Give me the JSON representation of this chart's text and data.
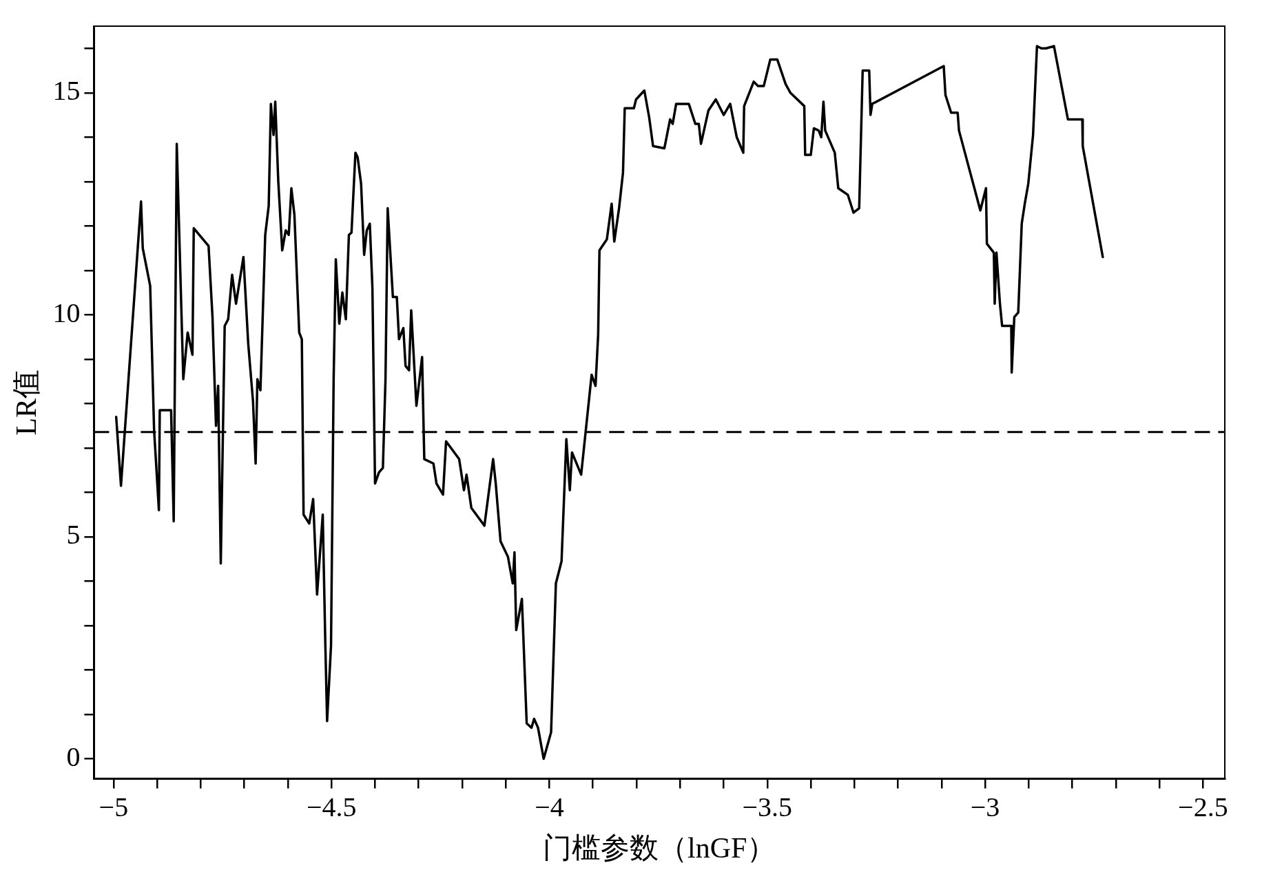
{
  "chart_data": {
    "type": "line",
    "xlabel": "门槛参数（lnGF）",
    "ylabel": "LR值",
    "xlim": [
      -5.045,
      -2.45
    ],
    "ylim": [
      -0.45,
      16.5
    ],
    "xticks": [
      {
        "value": -5,
        "label": "−5"
      },
      {
        "value": -4.9,
        "label": null
      },
      {
        "value": -4.8,
        "label": null
      },
      {
        "value": -4.7,
        "label": null
      },
      {
        "value": -4.6,
        "label": null
      },
      {
        "value": -4.5,
        "label": "−4.5"
      },
      {
        "value": -4.4,
        "label": null
      },
      {
        "value": -4.3,
        "label": null
      },
      {
        "value": -4.2,
        "label": null
      },
      {
        "value": -4.1,
        "label": null
      },
      {
        "value": -4,
        "label": "−4"
      },
      {
        "value": -3.9,
        "label": null
      },
      {
        "value": -3.8,
        "label": null
      },
      {
        "value": -3.7,
        "label": null
      },
      {
        "value": -3.6,
        "label": null
      },
      {
        "value": -3.5,
        "label": "−3.5"
      },
      {
        "value": -3.4,
        "label": null
      },
      {
        "value": -3.3,
        "label": null
      },
      {
        "value": -3.2,
        "label": null
      },
      {
        "value": -3.1,
        "label": null
      },
      {
        "value": -3,
        "label": "−3"
      },
      {
        "value": -2.9,
        "label": null
      },
      {
        "value": -2.8,
        "label": null
      },
      {
        "value": -2.7,
        "label": null
      },
      {
        "value": -2.6,
        "label": null
      },
      {
        "value": -2.5,
        "label": "−2.5"
      }
    ],
    "yticks": [
      0,
      {
        "value": 1,
        "label": null
      },
      {
        "value": 2,
        "label": null
      },
      {
        "value": 3,
        "label": null
      },
      {
        "value": 4,
        "label": null
      },
      5,
      {
        "value": 6,
        "label": null
      },
      {
        "value": 7,
        "label": null
      },
      {
        "value": 8,
        "label": null
      },
      {
        "value": 9,
        "label": null
      },
      10,
      {
        "value": 11,
        "label": null
      },
      {
        "value": 12,
        "label": null
      },
      {
        "value": 13,
        "label": null
      },
      {
        "value": 14,
        "label": null
      },
      15,
      {
        "value": 16,
        "label": null
      }
    ],
    "grid": false,
    "legend": false,
    "marker": "none",
    "line_style": "solid",
    "ref_lines": [
      {
        "axis": "y",
        "value": 7.36,
        "color": "#000000",
        "line_style": "dashed"
      }
    ],
    "series": [
      {
        "color": "#000000",
        "x": [
          -4.994,
          -4.983,
          -4.937,
          -4.933,
          -4.916,
          -4.907,
          -4.896,
          -4.894,
          -4.868,
          -4.862,
          -4.855,
          -4.84,
          -4.83,
          -4.819,
          -4.816,
          -4.782,
          -4.773,
          -4.765,
          -4.76,
          -4.754,
          -4.745,
          -4.737,
          -4.728,
          -4.719,
          -4.702,
          -4.691,
          -4.68,
          -4.674,
          -4.67,
          -4.663,
          -4.652,
          -4.644,
          -4.639,
          -4.633,
          -4.629,
          -4.622,
          -4.613,
          -4.605,
          -4.598,
          -4.592,
          -4.585,
          -4.574,
          -4.568,
          -4.564,
          -4.551,
          -4.542,
          -4.533,
          -4.52,
          -4.514,
          -4.51,
          -4.501,
          -4.495,
          -4.49,
          -4.482,
          -4.475,
          -4.467,
          -4.46,
          -4.454,
          -4.445,
          -4.44,
          -4.432,
          -4.425,
          -4.419,
          -4.412,
          -4.406,
          -4.4,
          -4.391,
          -4.382,
          -4.376,
          -4.371,
          -4.359,
          -4.35,
          -4.345,
          -4.335,
          -4.33,
          -4.322,
          -4.317,
          -4.305,
          -4.292,
          -4.287,
          -4.266,
          -4.259,
          -4.244,
          -4.237,
          -4.207,
          -4.196,
          -4.19,
          -4.179,
          -4.149,
          -4.129,
          -4.123,
          -4.112,
          -4.095,
          -4.084,
          -4.08,
          -4.076,
          -4.063,
          -4.052,
          -4.041,
          -4.035,
          -4.026,
          -4.013,
          -3.996,
          -3.985,
          -3.972,
          -3.961,
          -3.953,
          -3.948,
          -3.927,
          -3.903,
          -3.894,
          -3.888,
          -3.885,
          -3.868,
          -3.857,
          -3.851,
          -3.84,
          -3.831,
          -3.827,
          -3.806,
          -3.801,
          -3.782,
          -3.771,
          -3.762,
          -3.736,
          -3.723,
          -3.717,
          -3.709,
          -3.68,
          -3.665,
          -3.657,
          -3.652,
          -3.635,
          -3.618,
          -3.6,
          -3.585,
          -3.57,
          -3.555,
          -3.553,
          -3.531,
          -3.521,
          -3.508,
          -3.493,
          -3.477,
          -3.458,
          -3.447,
          -3.415,
          -3.413,
          -3.4,
          -3.393,
          -3.382,
          -3.376,
          -3.371,
          -3.367,
          -3.345,
          -3.337,
          -3.315,
          -3.302,
          -3.289,
          -3.281,
          -3.266,
          -3.263,
          -3.259,
          -3.095,
          -3.091,
          -3.078,
          -3.063,
          -3.06,
          -3.011,
          -2.998,
          -2.996,
          -2.98,
          -2.978,
          -2.974,
          -2.966,
          -2.961,
          -2.94,
          -2.939,
          -2.933,
          -2.924,
          -2.916,
          -2.909,
          -2.901,
          -2.89,
          -2.881,
          -2.871,
          -2.86,
          -2.842,
          -2.81,
          -2.777,
          -2.776,
          -2.73
        ],
        "values": [
          7.7,
          6.15,
          12.55,
          11.5,
          10.65,
          7.4,
          5.6,
          7.85,
          7.85,
          5.35,
          13.85,
          8.55,
          9.6,
          9.1,
          11.95,
          11.55,
          9.95,
          7.5,
          8.4,
          4.4,
          9.75,
          9.9,
          10.9,
          10.25,
          11.3,
          9.35,
          8.05,
          6.65,
          8.55,
          8.3,
          11.8,
          12.45,
          14.75,
          14.05,
          14.8,
          13.0,
          11.45,
          11.9,
          11.8,
          12.85,
          12.25,
          9.6,
          9.45,
          5.5,
          5.3,
          5.85,
          3.7,
          5.5,
          2.55,
          0.85,
          2.55,
          8.55,
          11.25,
          9.8,
          10.5,
          9.9,
          11.8,
          11.85,
          13.65,
          13.55,
          12.95,
          11.35,
          11.9,
          12.05,
          10.6,
          6.2,
          6.45,
          6.55,
          8.55,
          12.4,
          10.4,
          10.4,
          9.45,
          9.7,
          8.85,
          8.75,
          10.1,
          7.95,
          9.05,
          6.75,
          6.65,
          6.2,
          5.95,
          7.15,
          6.75,
          6.05,
          6.4,
          5.65,
          5.25,
          6.75,
          6.2,
          4.9,
          4.55,
          3.95,
          4.65,
          2.9,
          3.6,
          0.8,
          0.7,
          0.9,
          0.7,
          0.0,
          0.6,
          3.95,
          4.45,
          7.2,
          6.05,
          6.9,
          6.4,
          8.65,
          8.4,
          9.55,
          11.45,
          11.7,
          12.5,
          11.65,
          12.4,
          13.2,
          14.65,
          14.65,
          14.85,
          15.05,
          14.45,
          13.8,
          13.75,
          14.4,
          14.3,
          14.75,
          14.75,
          14.3,
          14.3,
          13.85,
          14.6,
          14.85,
          14.5,
          14.75,
          14.0,
          13.65,
          14.7,
          15.25,
          15.15,
          15.15,
          15.75,
          15.75,
          15.2,
          15.0,
          14.7,
          13.6,
          13.6,
          14.2,
          14.15,
          14.0,
          14.8,
          14.15,
          13.65,
          12.85,
          12.7,
          12.3,
          12.4,
          15.5,
          15.5,
          14.5,
          14.75,
          15.6,
          14.95,
          14.55,
          14.55,
          14.15,
          12.35,
          12.85,
          11.6,
          11.4,
          10.25,
          11.4,
          10.25,
          9.75,
          9.75,
          8.7,
          9.95,
          10.05,
          12.05,
          12.5,
          12.95,
          14.05,
          16.05,
          16.0,
          16.0,
          16.05,
          14.4,
          14.4,
          13.8,
          11.3
        ]
      }
    ]
  }
}
